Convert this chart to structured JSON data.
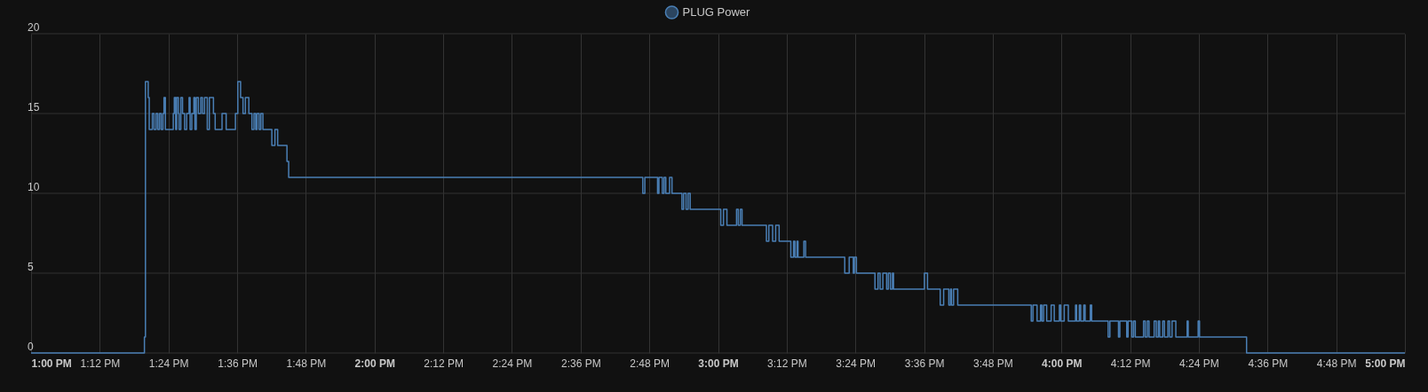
{
  "chart_data": {
    "type": "step",
    "legend": "top",
    "grid": true,
    "marker": "none",
    "xlim": [
      13,
      17
    ],
    "ylim": [
      0,
      20
    ],
    "yticks": [
      0,
      5,
      10,
      15,
      20
    ],
    "xticks": [
      {
        "value": 13,
        "label": "1:00 PM"
      },
      {
        "value": 13.2,
        "label": "1:12 PM"
      },
      {
        "value": 13.4,
        "label": "1:24 PM"
      },
      {
        "value": 13.6,
        "label": "1:36 PM"
      },
      {
        "value": 13.8,
        "label": "1:48 PM"
      },
      {
        "value": 14,
        "label": "2:00 PM"
      },
      {
        "value": 14.2,
        "label": "2:12 PM"
      },
      {
        "value": 14.4,
        "label": "2:24 PM"
      },
      {
        "value": 14.6,
        "label": "2:36 PM"
      },
      {
        "value": 14.8,
        "label": "2:48 PM"
      },
      {
        "value": 15,
        "label": "3:00 PM"
      },
      {
        "value": 15.2,
        "label": "3:12 PM"
      },
      {
        "value": 15.4,
        "label": "3:24 PM"
      },
      {
        "value": 15.6,
        "label": "3:36 PM"
      },
      {
        "value": 15.8,
        "label": "3:48 PM"
      },
      {
        "value": 16,
        "label": "4:00 PM"
      },
      {
        "value": 16.2,
        "label": "4:12 PM"
      },
      {
        "value": 16.4,
        "label": "4:24 PM"
      },
      {
        "value": 16.6,
        "label": "4:36 PM"
      },
      {
        "value": 16.8,
        "label": "4:48 PM"
      },
      {
        "value": 17,
        "label": "5:00 PM"
      }
    ],
    "series": [
      {
        "name": "PLUG Power",
        "color": "#4a7fb5",
        "x": [
          13,
          13.33,
          13.333,
          13.341,
          13.344,
          13.353,
          13.358,
          13.364,
          13.369,
          13.374,
          13.379,
          13.384,
          13.387,
          13.391,
          13.414,
          13.417,
          13.421,
          13.424,
          13.429,
          13.431,
          13.436,
          13.441,
          13.447,
          13.453,
          13.46,
          13.463,
          13.468,
          13.474,
          13.477,
          13.481,
          13.487,
          13.494,
          13.499,
          13.505,
          13.513,
          13.519,
          13.531,
          13.536,
          13.556,
          13.568,
          13.595,
          13.602,
          13.61,
          13.617,
          13.624,
          13.634,
          13.643,
          13.649,
          13.654,
          13.658,
          13.664,
          13.669,
          13.675,
          13.701,
          13.71,
          13.718,
          13.745,
          13.75,
          14.781,
          14.787,
          14.824,
          14.828,
          14.838,
          14.843,
          14.848,
          14.859,
          14.866,
          14.895,
          14.9,
          14.907,
          14.913,
          14.919,
          15.008,
          15.016,
          15.026,
          15.054,
          15.059,
          15.065,
          15.07,
          15.141,
          15.148,
          15.159,
          15.168,
          15.178,
          15.212,
          15.22,
          15.224,
          15.23,
          15.233,
          15.25,
          15.255,
          15.369,
          15.382,
          15.394,
          15.397,
          15.403,
          15.457,
          15.466,
          15.472,
          15.48,
          15.491,
          15.496,
          15.502,
          15.508,
          15.511,
          15.601,
          15.61,
          15.647,
          15.657,
          15.672,
          15.677,
          15.68,
          15.686,
          15.698,
          15.912,
          15.917,
          15.929,
          15.939,
          15.943,
          15.948,
          15.957,
          15.97,
          15.979,
          15.994,
          15.998,
          16.008,
          16.02,
          16.041,
          16.044,
          16.052,
          16.056,
          16.065,
          16.069,
          16.084,
          16.088,
          16.136,
          16.141,
          16.166,
          16.17,
          16.19,
          16.194,
          16.205,
          16.21,
          16.215,
          16.239,
          16.244,
          16.25,
          16.255,
          16.27,
          16.276,
          16.282,
          16.286,
          16.295,
          16.3,
          16.31,
          16.315,
          16.322,
          16.333,
          16.366,
          16.369,
          16.398,
          16.402,
          16.539,
          17
        ],
        "values": [
          0,
          1,
          17,
          16,
          14,
          15,
          14,
          15,
          14,
          15,
          14,
          15,
          16,
          14,
          15,
          16,
          14,
          16,
          15,
          14,
          16,
          15,
          14,
          15,
          16,
          14,
          15,
          16,
          14,
          16,
          15,
          16,
          15,
          16,
          14,
          16,
          15,
          14,
          15,
          14,
          15,
          17,
          16,
          15,
          16,
          15,
          14,
          15,
          14,
          15,
          14,
          15,
          14,
          13,
          14,
          13,
          12,
          11,
          10,
          11,
          10,
          11,
          10,
          11,
          10,
          11,
          10,
          9,
          10,
          9,
          10,
          9,
          8,
          9,
          8,
          9,
          8,
          9,
          8,
          7,
          8,
          7,
          8,
          7,
          6,
          7,
          6,
          7,
          6,
          7,
          6,
          5,
          6,
          5,
          6,
          5,
          4,
          5,
          4,
          5,
          4,
          5,
          4,
          5,
          4,
          5,
          4,
          3,
          4,
          3,
          4,
          3,
          4,
          3,
          2,
          3,
          2,
          3,
          2,
          3,
          2,
          3,
          2,
          3,
          2,
          3,
          2,
          3,
          2,
          3,
          2,
          3,
          2,
          3,
          2,
          1,
          2,
          1,
          2,
          1,
          2,
          1,
          2,
          1,
          2,
          1,
          2,
          1,
          2,
          1,
          2,
          1,
          2,
          1,
          2,
          1,
          2,
          1,
          2,
          1,
          2,
          1,
          0,
          0
        ]
      }
    ]
  }
}
